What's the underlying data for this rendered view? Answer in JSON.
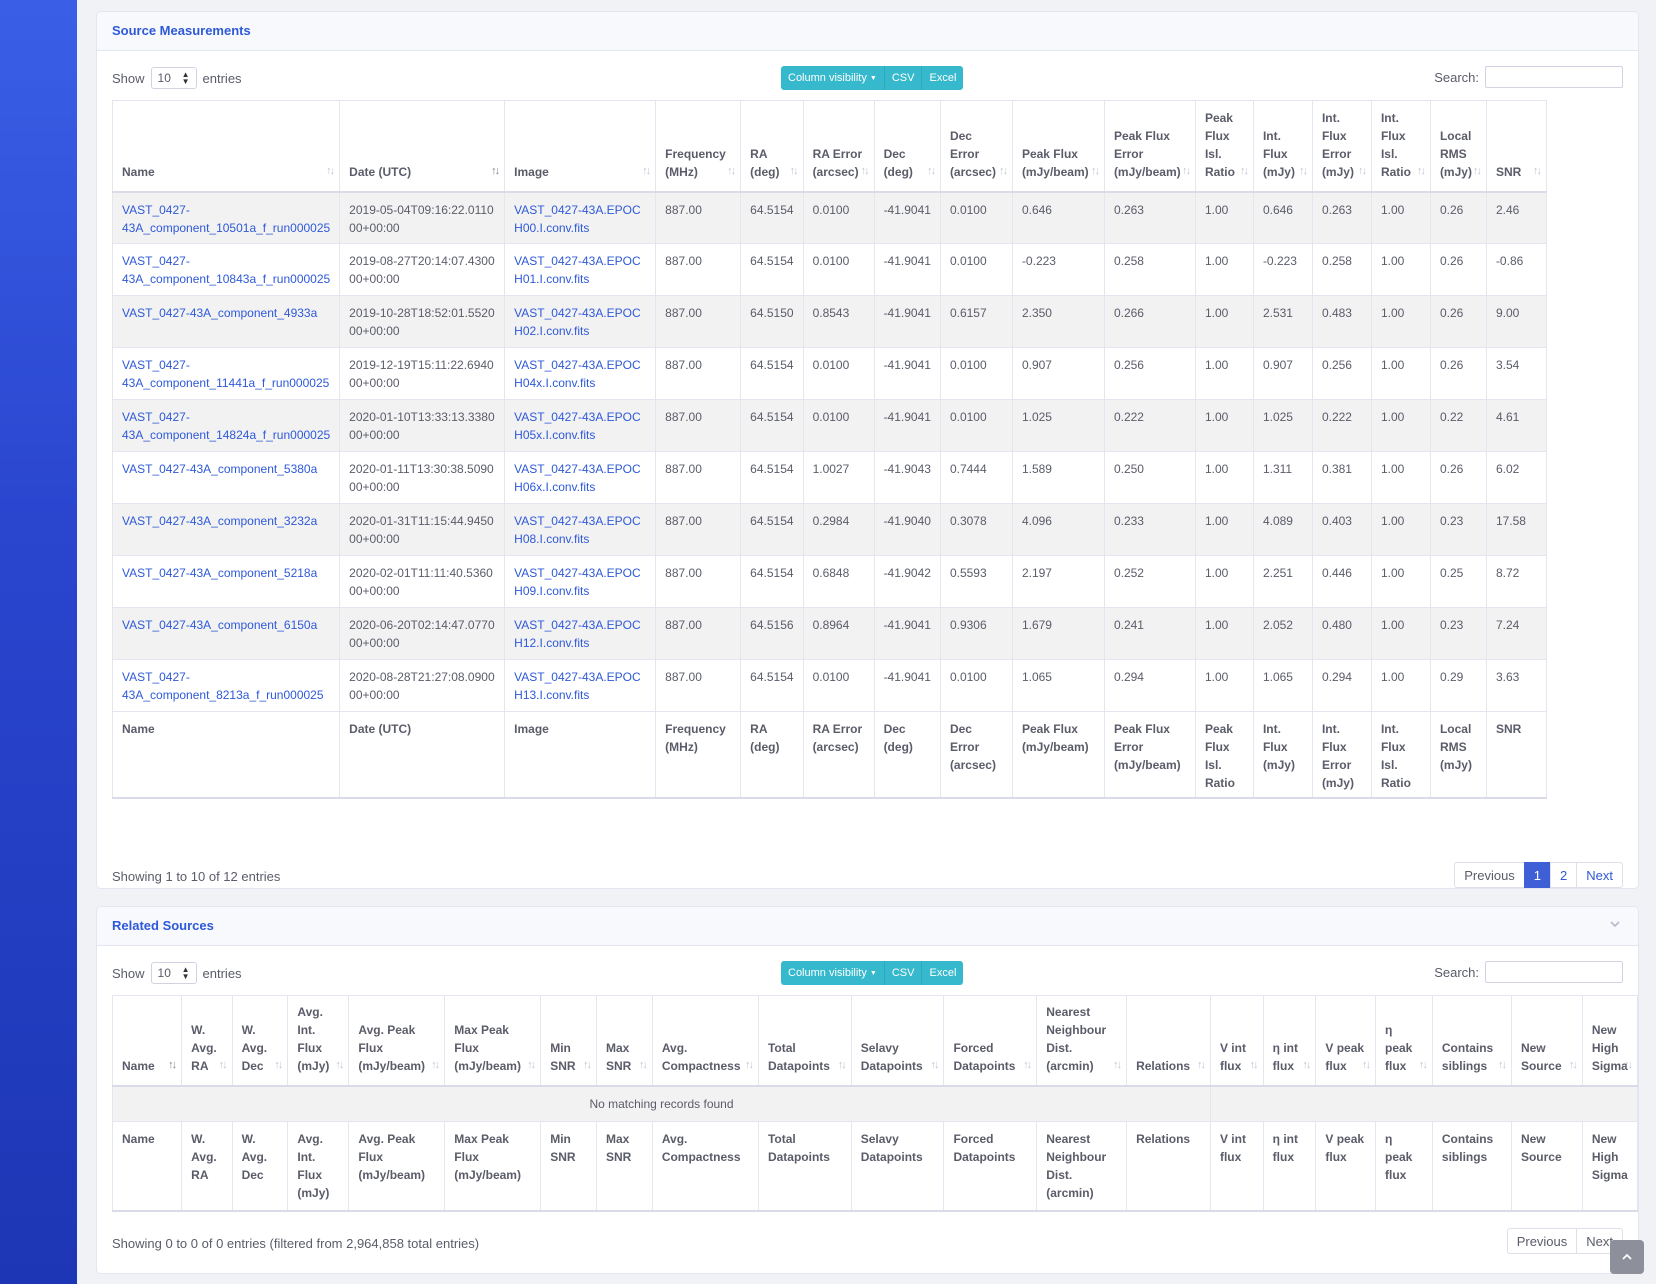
{
  "source_measurements": {
    "title": "Source Measurements",
    "show_label": "Show",
    "entries_label": "entries",
    "page_length": "10",
    "buttons": {
      "column_visibility": "Column visibility",
      "csv": "CSV",
      "excel": "Excel"
    },
    "search_label": "Search:",
    "columns": [
      "Name",
      "Date (UTC)",
      "Image",
      "Frequency (MHz)",
      "RA (deg)",
      "RA Error (arcsec)",
      "Dec (deg)",
      "Dec Error (arcsec)",
      "Peak Flux (mJy/beam)",
      "Peak Flux Error (mJy/beam)",
      "Peak Flux Isl. Ratio",
      "Int. Flux (mJy)",
      "Int. Flux Error (mJy)",
      "Int. Flux Isl. Ratio",
      "Local RMS (mJy)",
      "SNR"
    ],
    "rows": [
      [
        "VAST_0427-43A_component_10501a_f_run000025",
        "2019-05-04T09:16:22.011000+00:00",
        "VAST_0427-43A.EPOCH00.I.conv.fits",
        "887.00",
        "64.5154",
        "0.0100",
        "-41.9041",
        "0.0100",
        "0.646",
        "0.263",
        "1.00",
        "0.646",
        "0.263",
        "1.00",
        "0.26",
        "2.46"
      ],
      [
        "VAST_0427-43A_component_10843a_f_run000025",
        "2019-08-27T20:14:07.430000+00:00",
        "VAST_0427-43A.EPOCH01.I.conv.fits",
        "887.00",
        "64.5154",
        "0.0100",
        "-41.9041",
        "0.0100",
        "-0.223",
        "0.258",
        "1.00",
        "-0.223",
        "0.258",
        "1.00",
        "0.26",
        "-0.86"
      ],
      [
        "VAST_0427-43A_component_4933a",
        "2019-10-28T18:52:01.552000+00:00",
        "VAST_0427-43A.EPOCH02.I.conv.fits",
        "887.00",
        "64.5150",
        "0.8543",
        "-41.9041",
        "0.6157",
        "2.350",
        "0.266",
        "1.00",
        "2.531",
        "0.483",
        "1.00",
        "0.26",
        "9.00"
      ],
      [
        "VAST_0427-43A_component_11441a_f_run000025",
        "2019-12-19T15:11:22.694000+00:00",
        "VAST_0427-43A.EPOCH04x.I.conv.fits",
        "887.00",
        "64.5154",
        "0.0100",
        "-41.9041",
        "0.0100",
        "0.907",
        "0.256",
        "1.00",
        "0.907",
        "0.256",
        "1.00",
        "0.26",
        "3.54"
      ],
      [
        "VAST_0427-43A_component_14824a_f_run000025",
        "2020-01-10T13:33:13.338000+00:00",
        "VAST_0427-43A.EPOCH05x.I.conv.fits",
        "887.00",
        "64.5154",
        "0.0100",
        "-41.9041",
        "0.0100",
        "1.025",
        "0.222",
        "1.00",
        "1.025",
        "0.222",
        "1.00",
        "0.22",
        "4.61"
      ],
      [
        "VAST_0427-43A_component_5380a",
        "2020-01-11T13:30:38.509000+00:00",
        "VAST_0427-43A.EPOCH06x.I.conv.fits",
        "887.00",
        "64.5154",
        "1.0027",
        "-41.9043",
        "0.7444",
        "1.589",
        "0.250",
        "1.00",
        "1.311",
        "0.381",
        "1.00",
        "0.26",
        "6.02"
      ],
      [
        "VAST_0427-43A_component_3232a",
        "2020-01-31T11:15:44.945000+00:00",
        "VAST_0427-43A.EPOCH08.I.conv.fits",
        "887.00",
        "64.5154",
        "0.2984",
        "-41.9040",
        "0.3078",
        "4.096",
        "0.233",
        "1.00",
        "4.089",
        "0.403",
        "1.00",
        "0.23",
        "17.58"
      ],
      [
        "VAST_0427-43A_component_5218a",
        "2020-02-01T11:11:40.536000+00:00",
        "VAST_0427-43A.EPOCH09.I.conv.fits",
        "887.00",
        "64.5154",
        "0.6848",
        "-41.9042",
        "0.5593",
        "2.197",
        "0.252",
        "1.00",
        "2.251",
        "0.446",
        "1.00",
        "0.25",
        "8.72"
      ],
      [
        "VAST_0427-43A_component_6150a",
        "2020-06-20T02:14:47.077000+00:00",
        "VAST_0427-43A.EPOCH12.I.conv.fits",
        "887.00",
        "64.5156",
        "0.8964",
        "-41.9041",
        "0.9306",
        "1.679",
        "0.241",
        "1.00",
        "2.052",
        "0.480",
        "1.00",
        "0.23",
        "7.24"
      ],
      [
        "VAST_0427-43A_component_8213a_f_run000025",
        "2020-08-28T21:27:08.090000+00:00",
        "VAST_0427-43A.EPOCH13.I.conv.fits",
        "887.00",
        "64.5154",
        "0.0100",
        "-41.9041",
        "0.0100",
        "1.065",
        "0.294",
        "1.00",
        "1.065",
        "0.294",
        "1.00",
        "0.29",
        "3.63"
      ]
    ],
    "info": "Showing 1 to 10 of 12 entries",
    "pagination": {
      "previous": "Previous",
      "pages": [
        "1",
        "2"
      ],
      "next": "Next"
    }
  },
  "related_sources": {
    "title": "Related Sources",
    "show_label": "Show",
    "entries_label": "entries",
    "page_length": "10",
    "buttons": {
      "column_visibility": "Column visibility",
      "csv": "CSV",
      "excel": "Excel"
    },
    "search_label": "Search:",
    "columns": [
      "Name",
      "W. Avg. RA",
      "W. Avg. Dec",
      "Avg. Int. Flux (mJy)",
      "Avg. Peak Flux (mJy/beam)",
      "Max Peak Flux (mJy/beam)",
      "Min SNR",
      "Max SNR",
      "Avg. Compactness",
      "Total Datapoints",
      "Selavy Datapoints",
      "Forced Datapoints",
      "Nearest Neighbour Dist. (arcmin)",
      "Relations",
      "V int flux",
      "η int flux",
      "V peak flux",
      "η peak flux",
      "Contains siblings",
      "New Source",
      "New High Sigma"
    ],
    "empty_message": "No matching records found",
    "info": "Showing 0 to 0 of 0 entries (filtered from 2,964,858 total entries)",
    "pagination": {
      "previous": "Previous",
      "next": "Next"
    }
  },
  "icons": {
    "collapse": "chevron-down-icon",
    "scroll_top": "chevron-up-icon"
  },
  "colors": {
    "accent": "#2e59d9",
    "button": "#36b9cc",
    "sidebar": "#2a46cf"
  }
}
